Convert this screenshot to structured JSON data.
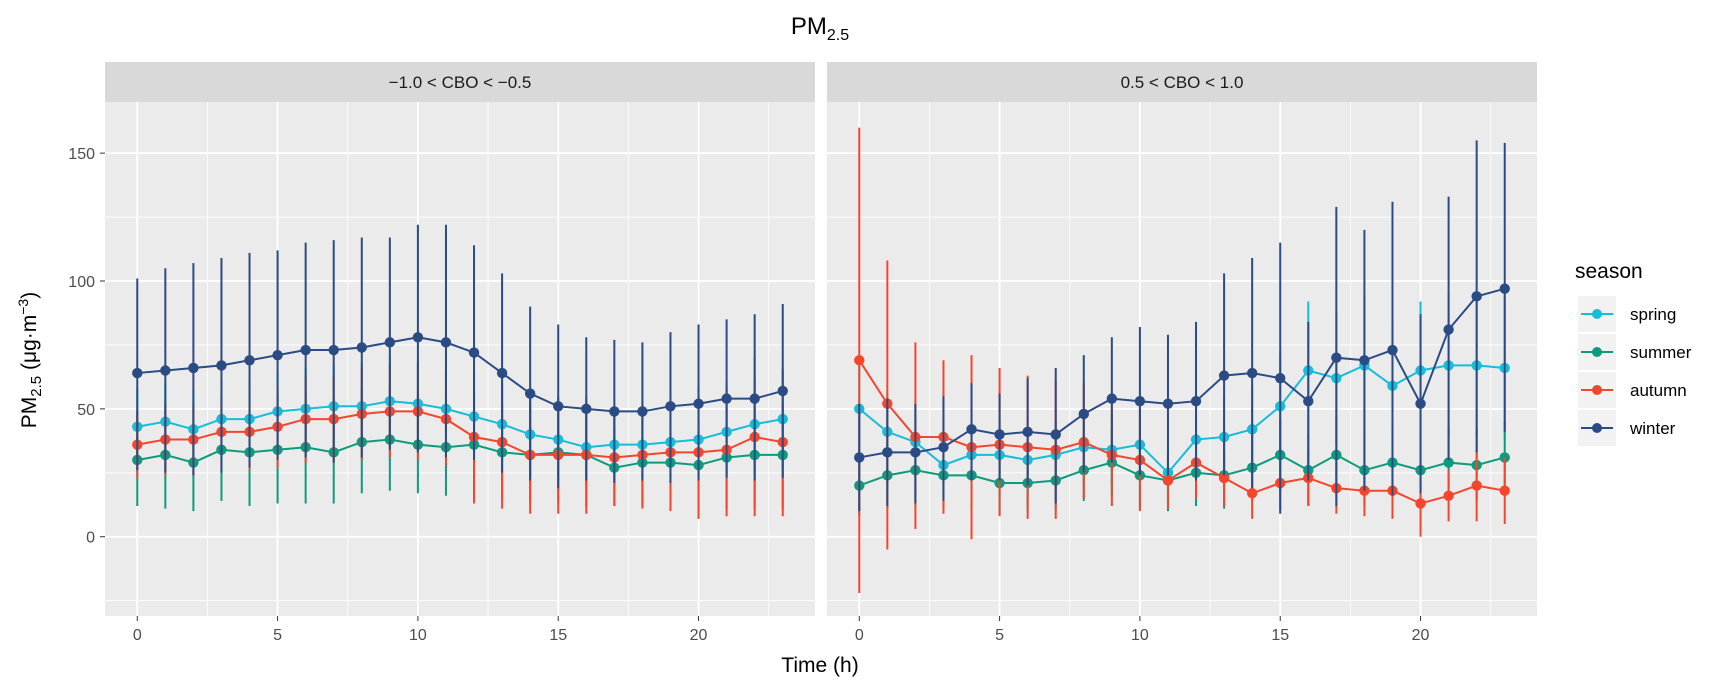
{
  "colors": {
    "spring": "#16bcd8",
    "summer": "#0e9a7c",
    "autumn": "#f4462c",
    "winter": "#2b4b84",
    "panel_bg": "#ebebeb",
    "strip_bg": "#d9d9d9",
    "grid": "#ffffff"
  },
  "chart_data": {
    "type": "line",
    "title_main": "PM",
    "title_sub": "2.5",
    "xlabel": "Time (h)",
    "ylabel_main": "PM",
    "ylabel_sub": "2.5",
    "ylabel_unit": " (μg·m",
    "ylabel_exp": "−3",
    "ylabel_close": ")",
    "xlim": [
      -1.15,
      24.15
    ],
    "ylim": [
      -31,
      170
    ],
    "xticks": [
      0,
      5,
      10,
      15,
      20
    ],
    "yticks": [
      0,
      50,
      100,
      150
    ],
    "legend": {
      "title": "season",
      "position": "right",
      "items": [
        "spring",
        "summer",
        "autumn",
        "winter"
      ]
    },
    "x": [
      0,
      1,
      2,
      3,
      4,
      5,
      6,
      7,
      8,
      9,
      10,
      11,
      12,
      13,
      14,
      15,
      16,
      17,
      18,
      19,
      20,
      21,
      22,
      23
    ],
    "panels": [
      {
        "label": "−1.0 < CBO < −0.5",
        "series": [
          {
            "name": "spring",
            "values": [
              43,
              45,
              42,
              46,
              46,
              49,
              50,
              51,
              51,
              53,
              52,
              50,
              47,
              44,
              40,
              38,
              35,
              36,
              36,
              37,
              38,
              41,
              44,
              46
            ],
            "lower": [
              28,
              30,
              28,
              32,
              32,
              34,
              35,
              35,
              35,
              36,
              35,
              34,
              31,
              29,
              24,
              22,
              20,
              21,
              21,
              21,
              22,
              24,
              26,
              27
            ],
            "upper": [
              58,
              60,
              57,
              61,
              61,
              64,
              66,
              67,
              68,
              70,
              69,
              66,
              63,
              60,
              56,
              54,
              50,
              51,
              51,
              53,
              54,
              58,
              62,
              65
            ]
          },
          {
            "name": "summer",
            "values": [
              30,
              32,
              29,
              34,
              33,
              34,
              35,
              33,
              37,
              38,
              36,
              35,
              36,
              33,
              32,
              33,
              32,
              27,
              29,
              29,
              28,
              31,
              32,
              32
            ],
            "lower": [
              12,
              11,
              10,
              14,
              12,
              13,
              13,
              13,
              17,
              18,
              17,
              16,
              16,
              15,
              13,
              13,
              12,
              12,
              12,
              12,
              10,
              11,
              11,
              11
            ],
            "upper": [
              49,
              53,
              49,
              55,
              54,
              55,
              57,
              54,
              58,
              59,
              56,
              55,
              56,
              52,
              51,
              53,
              52,
              43,
              46,
              46,
              46,
              51,
              53,
              53
            ]
          },
          {
            "name": "autumn",
            "values": [
              36,
              38,
              38,
              41,
              41,
              43,
              46,
              46,
              48,
              49,
              49,
              46,
              39,
              37,
              32,
              32,
              32,
              31,
              32,
              33,
              33,
              34,
              39,
              37
            ],
            "lower": [
              23,
              24,
              24,
              26,
              26,
              27,
              29,
              29,
              30,
              31,
              30,
              28,
              13,
              11,
              9,
              9,
              9,
              12,
              11,
              10,
              7,
              8,
              8,
              8
            ],
            "upper": [
              49,
              52,
              52,
              56,
              56,
              59,
              63,
              63,
              66,
              67,
              68,
              64,
              65,
              63,
              55,
              55,
              55,
              50,
              53,
              56,
              59,
              60,
              70,
              66
            ]
          },
          {
            "name": "winter",
            "values": [
              64,
              65,
              66,
              67,
              69,
              71,
              73,
              73,
              74,
              76,
              78,
              76,
              72,
              64,
              56,
              51,
              50,
              49,
              49,
              51,
              52,
              54,
              54,
              57
            ],
            "lower": [
              26,
              25,
              24,
              25,
              27,
              30,
              31,
              29,
              31,
              34,
              33,
              31,
              30,
              25,
              22,
              19,
              22,
              21,
              22,
              21,
              22,
              23,
              22,
              23
            ],
            "upper": [
              101,
              105,
              107,
              109,
              111,
              112,
              115,
              116,
              117,
              117,
              122,
              122,
              114,
              103,
              90,
              83,
              78,
              77,
              76,
              80,
              83,
              85,
              87,
              91
            ]
          }
        ]
      },
      {
        "label": "0.5 < CBO < 1.0",
        "series": [
          {
            "name": "spring",
            "values": [
              50,
              41,
              37,
              28,
              32,
              32,
              30,
              32,
              35,
              34,
              36,
              25,
              38,
              39,
              42,
              51,
              65,
              62,
              67,
              59,
              65,
              67,
              67,
              66
            ],
            "lower": [
              30,
              26,
              22,
              17,
              19,
              19,
              17,
              19,
              21,
              20,
              22,
              14,
              23,
              24,
              25,
              30,
              38,
              36,
              40,
              34,
              38,
              39,
              39,
              38
            ],
            "upper": [
              70,
              56,
              52,
              39,
              45,
              45,
              43,
              45,
              49,
              48,
              50,
              36,
              53,
              54,
              59,
              72,
              92,
              88,
              94,
              84,
              92,
              95,
              95,
              94
            ]
          },
          {
            "name": "summer",
            "values": [
              20,
              24,
              26,
              24,
              24,
              21,
              21,
              22,
              26,
              29,
              24,
              22,
              25,
              24,
              27,
              32,
              26,
              32,
              26,
              29,
              26,
              29,
              28,
              31
            ],
            "lower": [
              8,
              11,
              12,
              11,
              11,
              9,
              10,
              10,
              14,
              16,
              11,
              10,
              12,
              11,
              14,
              18,
              12,
              17,
              12,
              15,
              12,
              15,
              14,
              17
            ],
            "upper": [
              32,
              37,
              40,
              37,
              37,
              33,
              32,
              34,
              38,
              42,
              37,
              34,
              38,
              37,
              40,
              46,
              40,
              47,
              40,
              43,
              40,
              43,
              42,
              45
            ]
          },
          {
            "name": "autumn",
            "values": [
              69,
              52,
              39,
              39,
              35,
              36,
              35,
              34,
              37,
              32,
              30,
              22,
              29,
              23,
              17,
              21,
              23,
              19,
              18,
              18,
              13,
              16,
              20,
              18
            ],
            "lower": [
              -22,
              -5,
              3,
              9,
              -1,
              8,
              7,
              7,
              15,
              12,
              10,
              11,
              15,
              12,
              7,
              10,
              12,
              9,
              8,
              7,
              0,
              6,
              6,
              5
            ],
            "upper": [
              160,
              108,
              76,
              69,
              71,
              66,
              63,
              61,
              60,
              52,
              50,
              33,
              43,
              34,
              27,
              32,
              34,
              29,
              28,
              29,
              26,
              26,
              34,
              31
            ]
          },
          {
            "name": "winter",
            "values": [
              31,
              33,
              33,
              35,
              42,
              40,
              41,
              40,
              48,
              54,
              53,
              52,
              53,
              63,
              64,
              62,
              53,
              70,
              69,
              73,
              52,
              81,
              94,
              97
            ],
            "lower": [
              10,
              12,
              13,
              14,
              22,
              22,
              20,
              13,
              25,
              29,
              24,
              24,
              22,
              24,
              19,
              9,
              22,
              12,
              18,
              16,
              17,
              30,
              33,
              41
            ],
            "upper": [
              52,
              54,
              52,
              55,
              60,
              56,
              62,
              66,
              71,
              78,
              82,
              79,
              84,
              103,
              109,
              115,
              84,
              129,
              120,
              131,
              87,
              133,
              155,
              154
            ]
          }
        ]
      }
    ]
  }
}
